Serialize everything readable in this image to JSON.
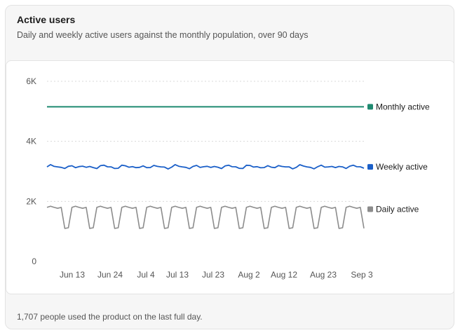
{
  "card": {
    "title": "Active users",
    "subtitle": "Daily and weekly active users against the monthly population, over 90 days",
    "footer": "1,707 people used the product on the last full day."
  },
  "chart_data": {
    "type": "line",
    "x_ticks": [
      "Jun 13",
      "Jun 24",
      "Jul 4",
      "Jul 13",
      "Jul 23",
      "Aug 2",
      "Aug 12",
      "Aug 23",
      "Sep 3"
    ],
    "y_ticks": [
      "0",
      "2K",
      "4K",
      "6K"
    ],
    "ylim": [
      0,
      6000
    ],
    "grid": true,
    "legend": "inline-right",
    "colors": {
      "monthly": "#1f8a70",
      "weekly": "#1a5fc8",
      "daily": "#8c8c8c",
      "grid": "#d9d9d9"
    },
    "series": [
      {
        "name": "Monthly active",
        "color": "#1f8a70",
        "value": 5150
      },
      {
        "name": "Weekly active",
        "color": "#1a5fc8",
        "base": 3150,
        "amplitude": 60
      },
      {
        "name": "Daily active",
        "color": "#8c8c8c",
        "weekday": 1800,
        "weekend": 1100
      }
    ]
  }
}
